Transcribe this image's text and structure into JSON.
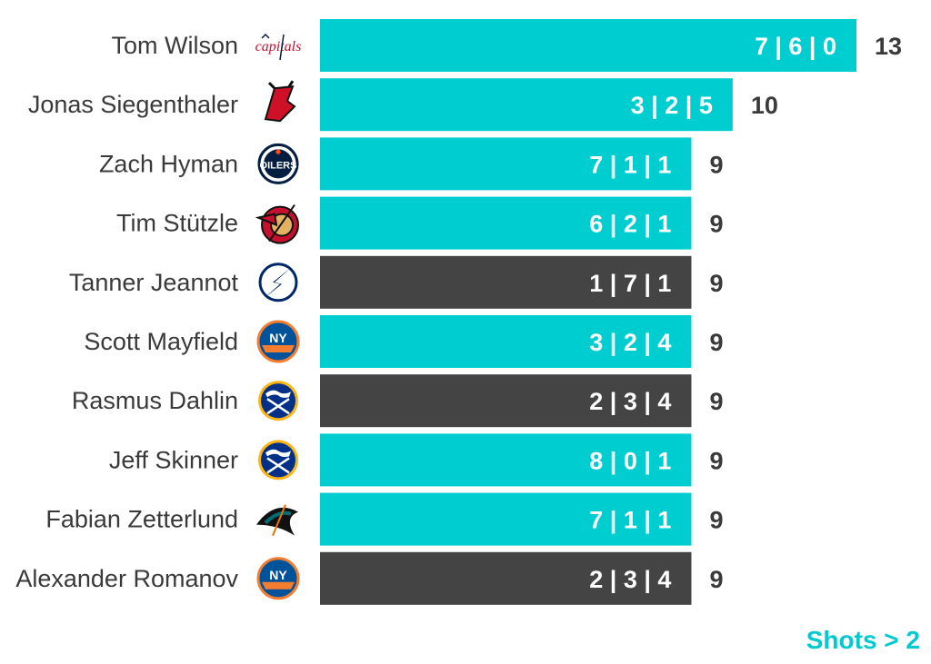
{
  "chart_data": {
    "type": "bar",
    "orientation": "horizontal",
    "legend_note": "Shots > 2",
    "xlim": [
      0,
      14
    ],
    "colors": {
      "highlight": "#00cdd0",
      "other": "#444444",
      "legend": "#00c9cf",
      "text": "#3a3a3a"
    },
    "rows": [
      {
        "player": "Tom Wilson",
        "team_logo": "capitals-logo",
        "value": 13,
        "breakdown": "7 | 6 | 0",
        "highlight": true
      },
      {
        "player": "Jonas Siegenthaler",
        "team_logo": "devils-logo",
        "value": 10,
        "breakdown": "3 | 2 | 5",
        "highlight": true
      },
      {
        "player": "Zach Hyman",
        "team_logo": "oilers-logo",
        "value": 9,
        "breakdown": "7 | 1 | 1",
        "highlight": true
      },
      {
        "player": "Tim Stützle",
        "team_logo": "senators-logo",
        "value": 9,
        "breakdown": "6 | 2 | 1",
        "highlight": true
      },
      {
        "player": "Tanner Jeannot",
        "team_logo": "lightning-logo",
        "value": 9,
        "breakdown": "1 | 7 | 1",
        "highlight": false
      },
      {
        "player": "Scott Mayfield",
        "team_logo": "islanders-logo",
        "value": 9,
        "breakdown": "3 | 2 | 4",
        "highlight": true
      },
      {
        "player": "Rasmus Dahlin",
        "team_logo": "sabres-logo",
        "value": 9,
        "breakdown": "2 | 3 | 4",
        "highlight": false
      },
      {
        "player": "Jeff Skinner",
        "team_logo": "sabres-logo",
        "value": 9,
        "breakdown": "8 | 0 | 1",
        "highlight": true
      },
      {
        "player": "Fabian Zetterlund",
        "team_logo": "sharks-logo",
        "value": 9,
        "breakdown": "7 | 1 | 1",
        "highlight": true
      },
      {
        "player": "Alexander Romanov",
        "team_logo": "islanders-logo",
        "value": 9,
        "breakdown": "2 | 3 | 4",
        "highlight": false
      }
    ]
  }
}
